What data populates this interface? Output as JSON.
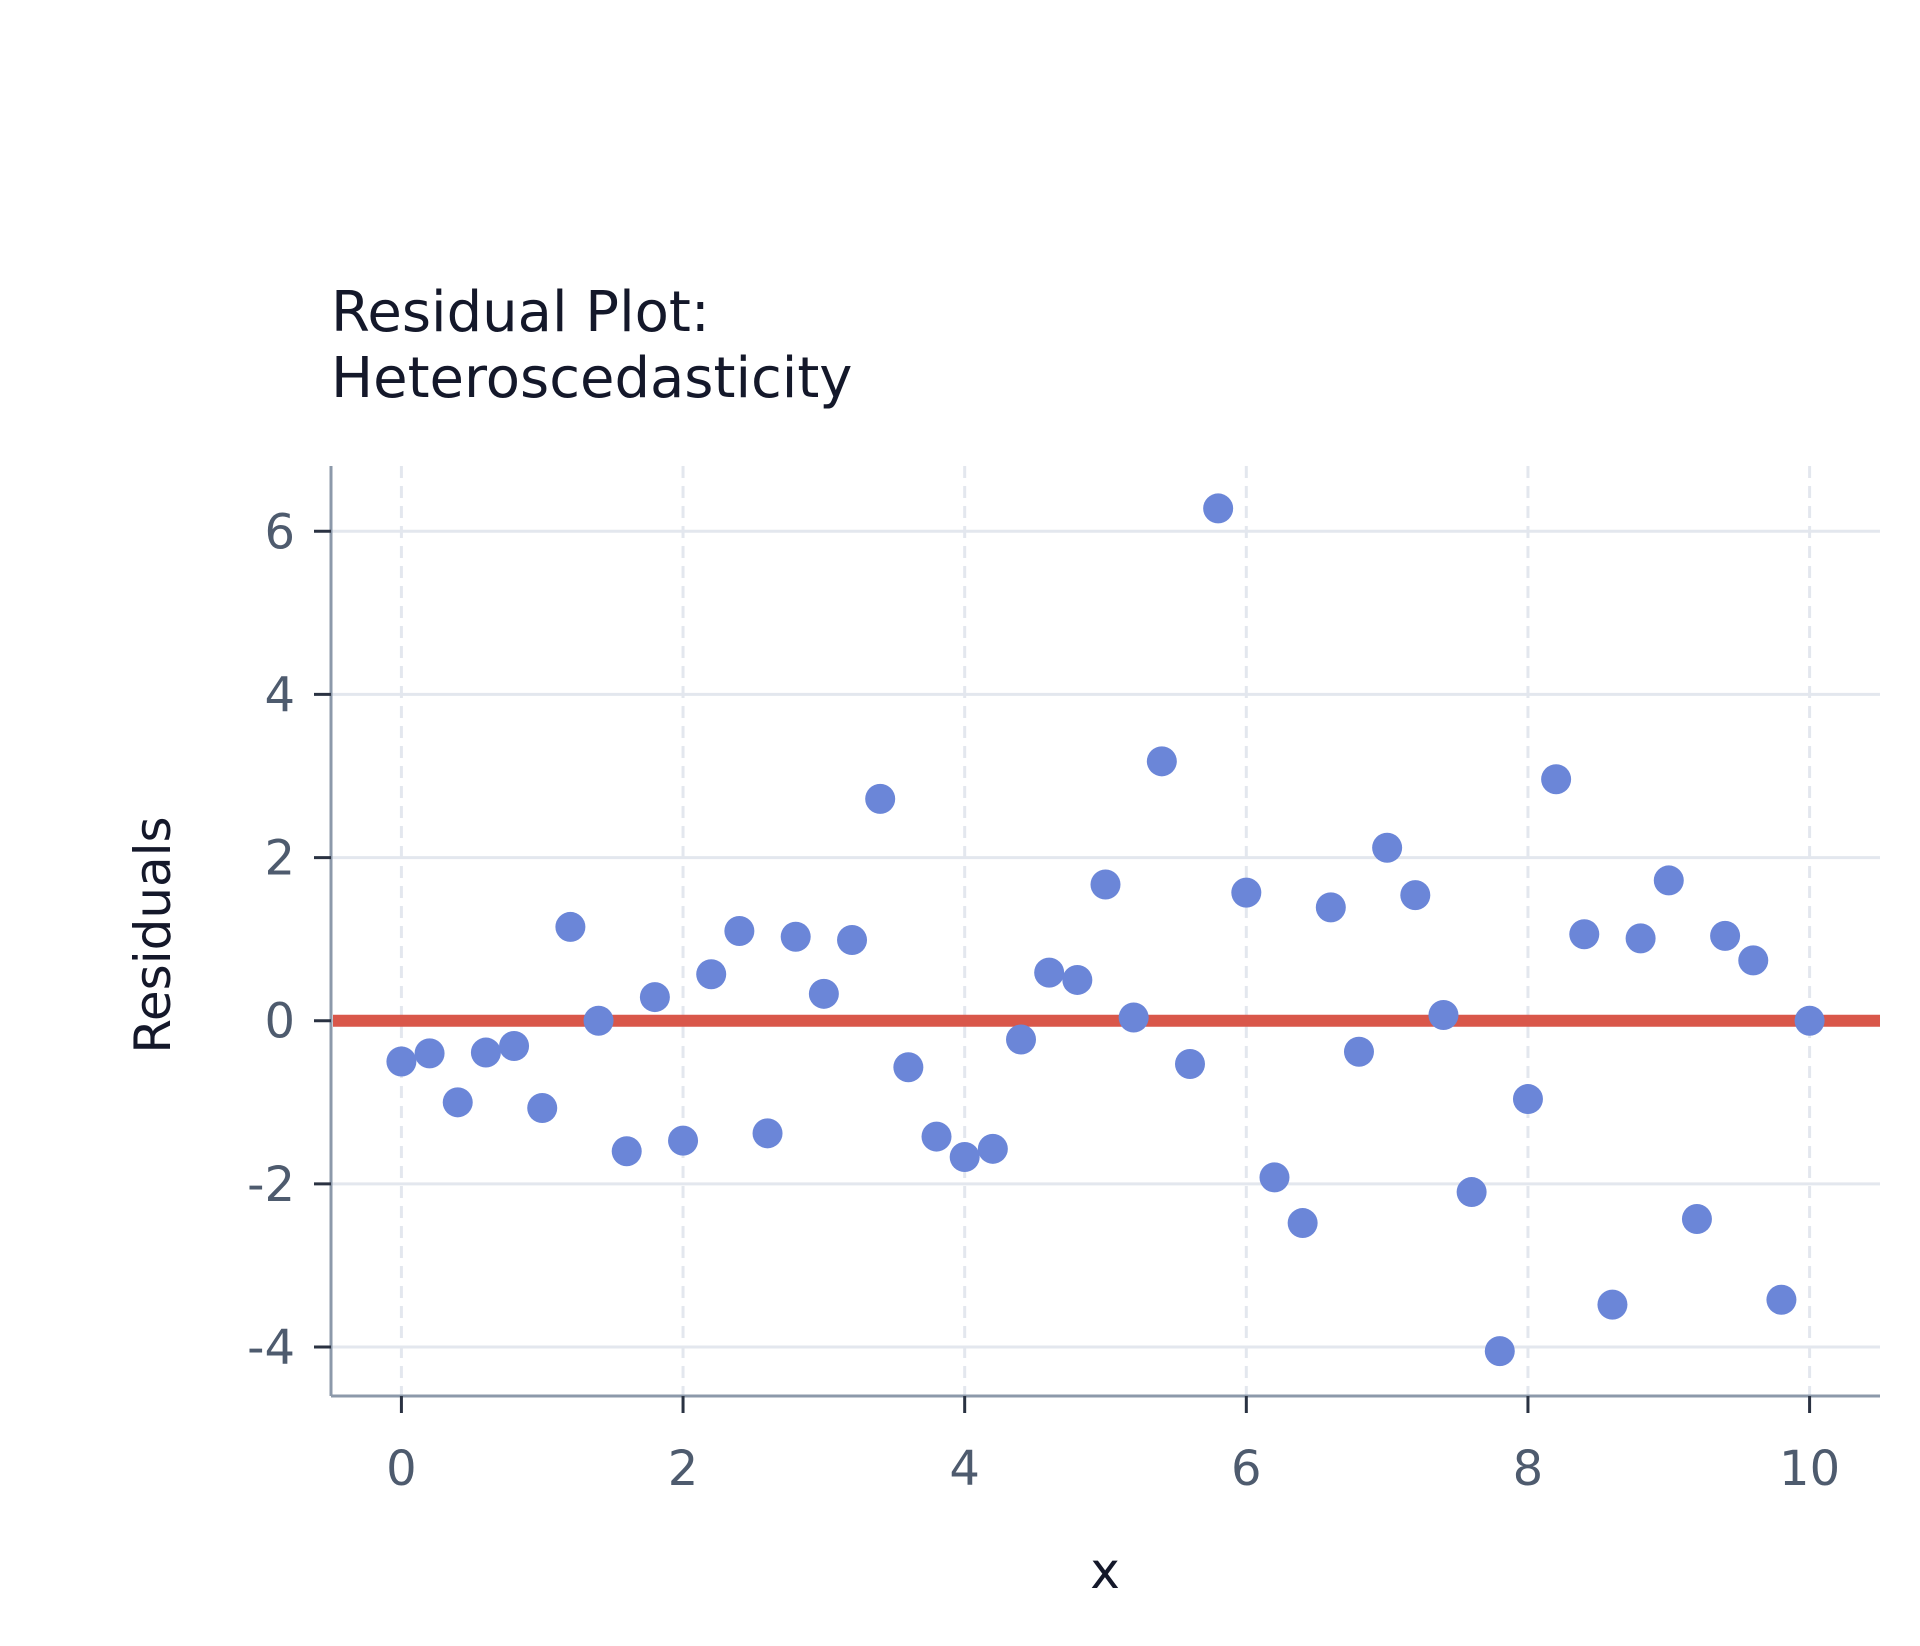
{
  "chart_data": {
    "type": "scatter",
    "title": [
      "Residual Plot:",
      "Heteroscedasticity"
    ],
    "xlabel": "x",
    "ylabel": "Residuals",
    "xlim": [
      -0.5,
      10.5
    ],
    "ylim": [
      -4.6,
      6.8
    ],
    "xticks": [
      0,
      2,
      4,
      6,
      8,
      10
    ],
    "yticks": [
      -4,
      -2,
      0,
      2,
      4,
      6
    ],
    "xtick_labels": [
      "0",
      "2",
      "4",
      "6",
      "8",
      "10"
    ],
    "ytick_labels": [
      "-4",
      "-2",
      "0",
      "2",
      "4",
      "6"
    ],
    "grid": true,
    "reference_line": {
      "y": 0,
      "color": "#d9574a"
    },
    "point_color": "#6b86d8",
    "series": [
      {
        "x": [
          0.0,
          0.2,
          0.4,
          0.6,
          0.8,
          1.0,
          1.2,
          1.4,
          1.6,
          1.8,
          2.0,
          2.2,
          2.4,
          2.6,
          2.8,
          3.0,
          3.2,
          3.4,
          3.6,
          3.8,
          4.0,
          4.2,
          4.4,
          4.6,
          4.8,
          5.0,
          5.2,
          5.4,
          5.6,
          5.8,
          6.0,
          6.2,
          6.4,
          6.6,
          6.8,
          7.0,
          7.2,
          7.4,
          7.6,
          7.8,
          8.0,
          8.2,
          8.4,
          8.6,
          8.8,
          9.0,
          9.2,
          9.4,
          9.6,
          9.8,
          10.0
        ],
        "y": [
          -0.5,
          -0.4,
          -1.0,
          -0.39,
          -0.31,
          -1.07,
          1.15,
          0.0,
          -1.6,
          0.29,
          -1.47,
          0.57,
          1.1,
          -1.38,
          1.03,
          0.33,
          0.99,
          2.72,
          -0.57,
          -1.42,
          -1.67,
          -1.57,
          -0.23,
          0.59,
          0.5,
          1.67,
          0.04,
          3.18,
          -0.53,
          6.28,
          1.57,
          -1.92,
          -2.48,
          1.39,
          -0.38,
          2.12,
          1.54,
          0.07,
          -2.1,
          -4.05,
          -0.96,
          2.96,
          1.06,
          -3.48,
          1.01,
          1.72,
          -2.43,
          1.04,
          0.74,
          -3.42,
          0.0
        ]
      }
    ]
  }
}
